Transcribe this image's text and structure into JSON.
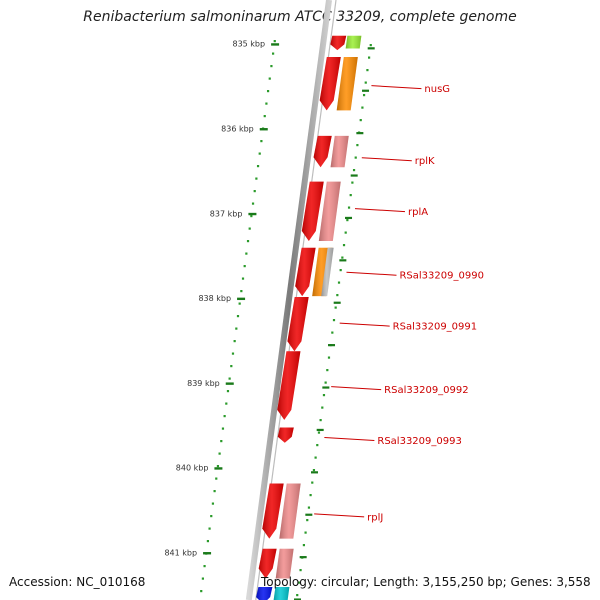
{
  "title": "Renibacterium salmoninarum ATCC 33209, complete genome",
  "accession_label": "Accession:",
  "accession": "NC_010168",
  "topology_label": "Topology:",
  "topology": "circular",
  "length_label": "Length:",
  "length": "3,155,250 bp",
  "genes_label": "Genes:",
  "genes": "3,558",
  "colors": {
    "tick": "#1a7a1a",
    "dots": "#2a9a2a",
    "label": "#cc0000",
    "backbone": "#8a8a8a",
    "red_gene": "#ee0000",
    "pink_gene": "#f08a8a",
    "orange_gene": "#ff8c00",
    "lime_gene": "#99ee33",
    "gray_gene": "#bdbdbd",
    "cyan_gene": "#00c8d2",
    "blue_gene": "#0010ee"
  },
  "ticks": [
    {
      "kbp": 835,
      "label": "835 kbp"
    },
    {
      "kbp": 836,
      "label": "836 kbp"
    },
    {
      "kbp": 837,
      "label": "837 kbp"
    },
    {
      "kbp": 838,
      "label": "838 kbp"
    },
    {
      "kbp": 839,
      "label": "839 kbp"
    },
    {
      "kbp": 840,
      "label": "840 kbp"
    },
    {
      "kbp": 841,
      "label": "841 kbp"
    }
  ],
  "strand_genes": [
    {
      "start": 834.9,
      "end": 835.07,
      "color": "red_gene",
      "kind": "arrow"
    },
    {
      "start": 834.9,
      "end": 835.05,
      "color": "lime_gene",
      "kind": "bar"
    },
    {
      "start": 835.15,
      "end": 835.78,
      "color": "red_gene",
      "kind": "arrow"
    },
    {
      "start": 835.15,
      "end": 835.78,
      "color": "orange_gene",
      "kind": "bar"
    },
    {
      "start": 836.08,
      "end": 836.45,
      "color": "red_gene",
      "kind": "arrow"
    },
    {
      "start": 836.08,
      "end": 836.45,
      "color": "pink_gene",
      "kind": "bar"
    },
    {
      "start": 836.62,
      "end": 837.32,
      "color": "red_gene",
      "kind": "arrow"
    },
    {
      "start": 836.62,
      "end": 837.32,
      "color": "pink_gene",
      "kind": "bar"
    },
    {
      "start": 837.4,
      "end": 837.97,
      "color": "red_gene",
      "kind": "arrow"
    },
    {
      "start": 837.4,
      "end": 837.97,
      "color": "orange_gene",
      "kind": "bar"
    },
    {
      "start": 837.4,
      "end": 837.97,
      "color": "gray_gene",
      "kind": "bar"
    },
    {
      "start": 837.98,
      "end": 838.62,
      "color": "red_gene",
      "kind": "arrow"
    },
    {
      "start": 838.62,
      "end": 839.43,
      "color": "red_gene",
      "kind": "arrow"
    },
    {
      "start": 839.52,
      "end": 839.7,
      "color": "red_gene",
      "kind": "arrow"
    },
    {
      "start": 840.18,
      "end": 840.83,
      "color": "red_gene",
      "kind": "arrow"
    },
    {
      "start": 840.18,
      "end": 840.83,
      "color": "pink_gene",
      "kind": "bar"
    },
    {
      "start": 840.95,
      "end": 841.3,
      "color": "red_gene",
      "kind": "arrow"
    },
    {
      "start": 840.95,
      "end": 841.3,
      "color": "pink_gene",
      "kind": "bar"
    },
    {
      "start": 841.4,
      "end": 841.6,
      "color": "cyan_gene",
      "kind": "bar"
    },
    {
      "start": 841.4,
      "end": 841.6,
      "color": "blue_gene",
      "kind": "arrow"
    }
  ],
  "gene_labels": [
    {
      "name": "nusG",
      "kbp": 835.5
    },
    {
      "name": "rplK",
      "kbp": 836.35
    },
    {
      "name": "rplA",
      "kbp": 836.95
    },
    {
      "name": "RSal33209_0990",
      "kbp": 837.7
    },
    {
      "name": "RSal33209_0991",
      "kbp": 838.3
    },
    {
      "name": "RSal33209_0992",
      "kbp": 839.05
    },
    {
      "name": "RSal33209_0993",
      "kbp": 839.65
    },
    {
      "name": "rplJ",
      "kbp": 840.55
    }
  ]
}
